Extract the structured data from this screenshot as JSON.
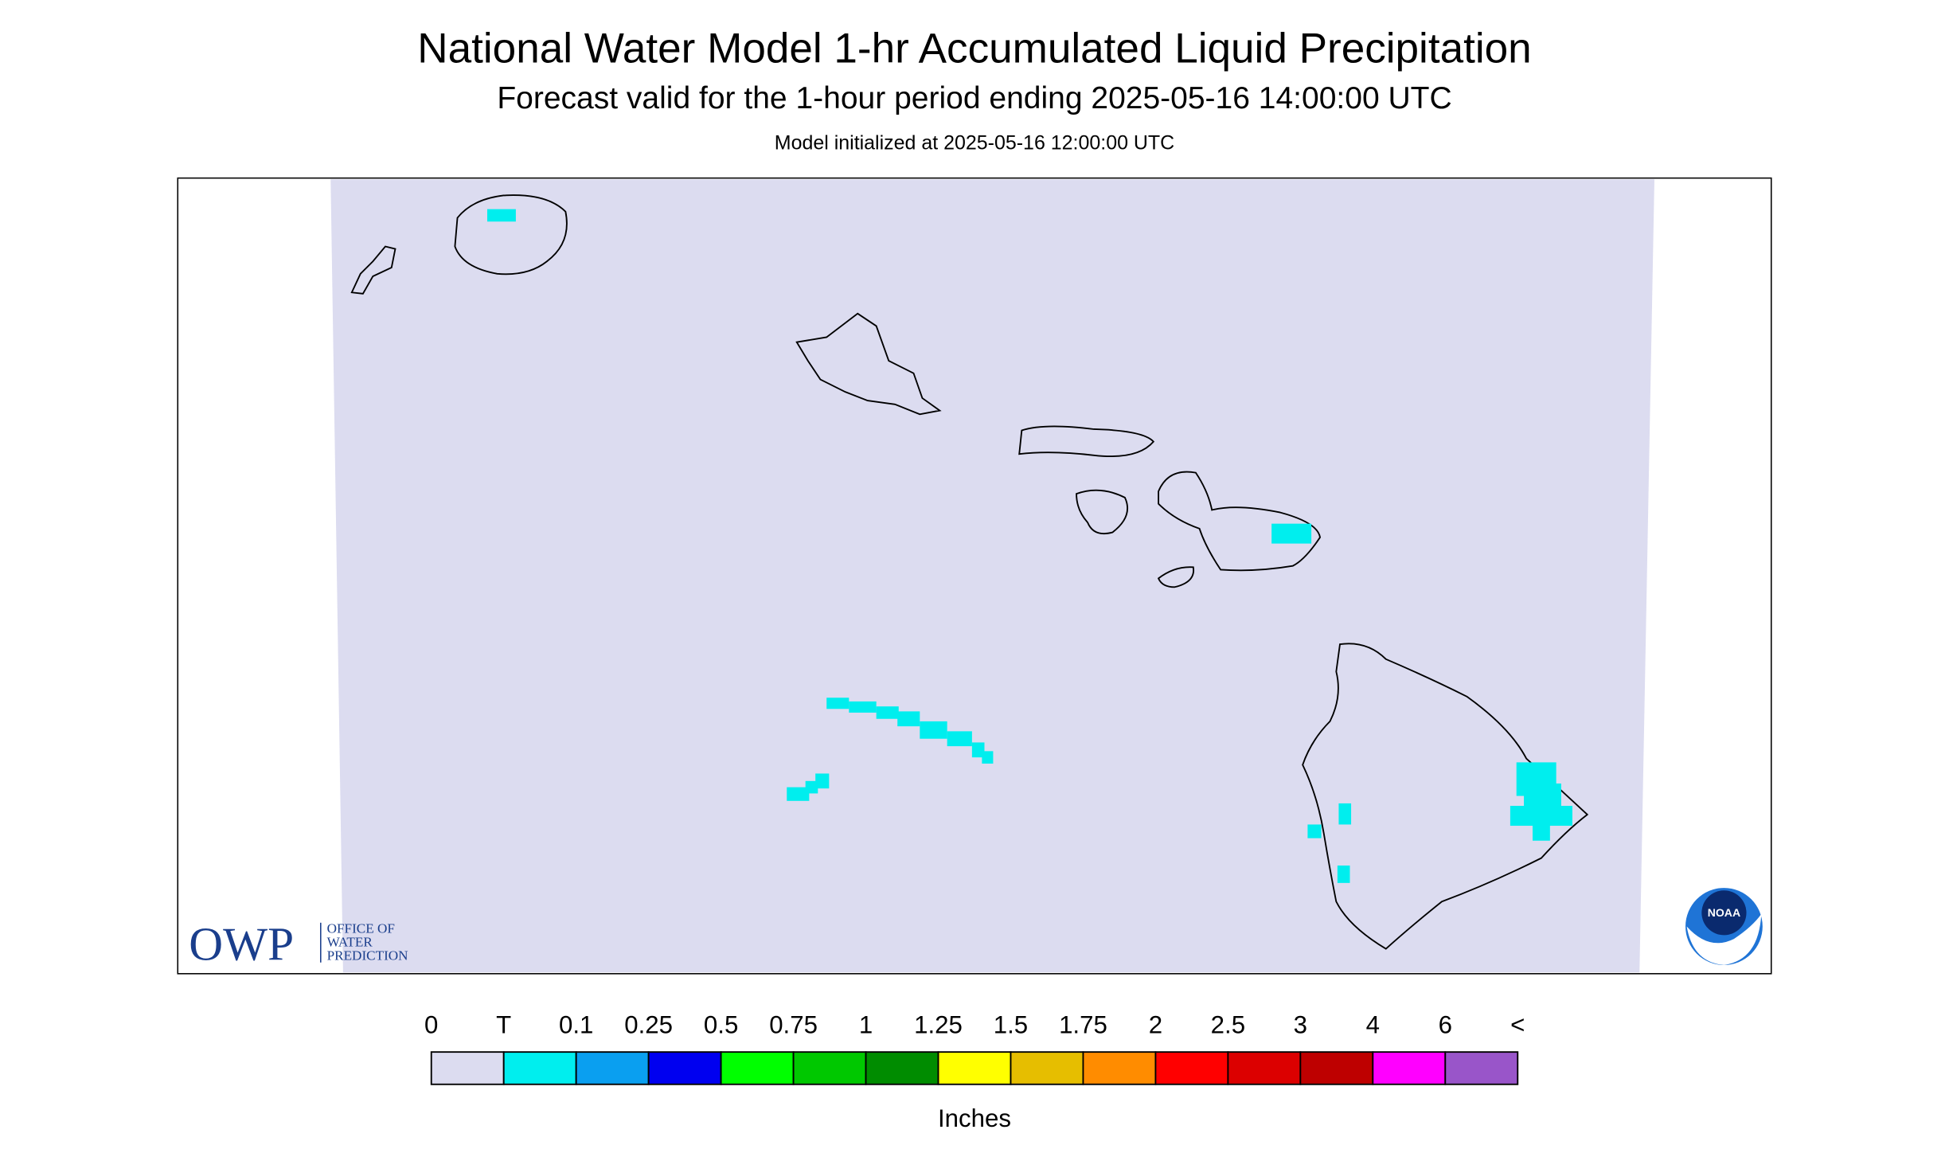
{
  "title": "National Water Model 1-hr Accumulated Liquid Precipitation",
  "subtitle": "Forecast valid for the 1-hour period ending 2025-05-16 14:00:00 UTC",
  "init": "Model initialized at 2025-05-16 12:00:00 UTC",
  "logos": {
    "owp": "OWP",
    "owp_lines": [
      "OFFICE OF",
      "WATER",
      "PREDICTION"
    ],
    "noaa": "NOAA"
  },
  "legend": {
    "labels": [
      "0",
      "T",
      "0.1",
      "0.25",
      "0.5",
      "0.75",
      "1",
      "1.25",
      "1.5",
      "1.75",
      "2",
      "2.5",
      "3",
      "4",
      "6",
      "<"
    ],
    "colors": [
      "#dcdcf0",
      "#00eeee",
      "#0a9ff0",
      "#0000f0",
      "#00ff00",
      "#00c800",
      "#008c00",
      "#ffff00",
      "#e6be00",
      "#ff8c00",
      "#ff0000",
      "#dc0000",
      "#be0000",
      "#ff00ff",
      "#9955c9"
    ],
    "unit": "Inches"
  }
}
